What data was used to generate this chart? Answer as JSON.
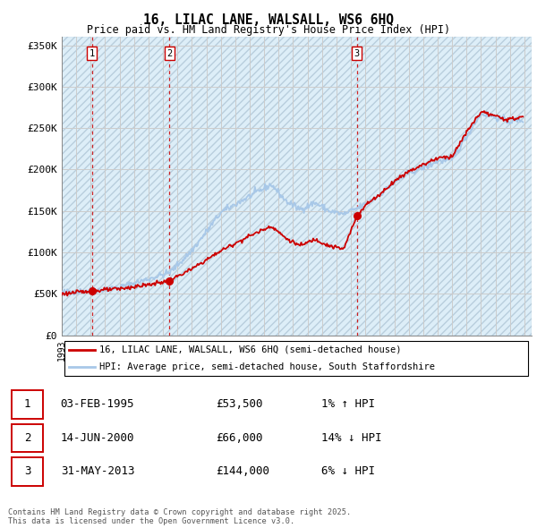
{
  "title": "16, LILAC LANE, WALSALL, WS6 6HQ",
  "subtitle": "Price paid vs. HM Land Registry's House Price Index (HPI)",
  "ylim": [
    0,
    360000
  ],
  "yticks": [
    0,
    50000,
    100000,
    150000,
    200000,
    250000,
    300000,
    350000
  ],
  "ytick_labels": [
    "£0",
    "£50K",
    "£100K",
    "£150K",
    "£200K",
    "£250K",
    "£300K",
    "£350K"
  ],
  "transaction_dates": [
    1995.09,
    2000.45,
    2013.41
  ],
  "transaction_prices": [
    53500,
    66000,
    144000
  ],
  "transaction_labels": [
    "1",
    "2",
    "3"
  ],
  "transaction_table": [
    {
      "num": "1",
      "date": "03-FEB-1995",
      "price": "£53,500",
      "hpi": "1% ↑ HPI"
    },
    {
      "num": "2",
      "date": "14-JUN-2000",
      "price": "£66,000",
      "hpi": "14% ↓ HPI"
    },
    {
      "num": "3",
      "date": "31-MAY-2013",
      "price": "£144,000",
      "hpi": "6% ↓ HPI"
    }
  ],
  "legend_entries": [
    "16, LILAC LANE, WALSALL, WS6 6HQ (semi-detached house)",
    "HPI: Average price, semi-detached house, South Staffordshire"
  ],
  "footer": "Contains HM Land Registry data © Crown copyright and database right 2025.\nThis data is licensed under the Open Government Licence v3.0.",
  "hpi_color": "#a8c8e8",
  "price_color": "#cc0000",
  "vline_color": "#cc0000",
  "bg_face_color": "#ddeef8",
  "hatch_color": "#b8cedd",
  "grid_color": "#cccccc",
  "hpi_anchors_x": [
    1993.0,
    1995.1,
    1997.0,
    1999.0,
    2000.5,
    2002.0,
    2004.0,
    2006.0,
    2007.5,
    2008.5,
    2009.5,
    2010.5,
    2011.5,
    2012.5,
    2013.4,
    2014.0,
    2015.0,
    2016.0,
    2017.0,
    2018.0,
    2019.0,
    2020.0,
    2021.0,
    2022.0,
    2023.0,
    2024.0,
    2024.9
  ],
  "hpi_anchors_y": [
    52000,
    54000,
    58000,
    68000,
    76000,
    102000,
    148000,
    168000,
    182000,
    162000,
    152000,
    160000,
    150000,
    146000,
    153000,
    158000,
    170000,
    184000,
    196000,
    202000,
    210000,
    212000,
    240000,
    268000,
    263000,
    258000,
    260000
  ],
  "price_anchors_x": [
    1993.0,
    1995.09,
    1997.0,
    1999.0,
    2000.45,
    2002.0,
    2004.0,
    2006.0,
    2007.5,
    2008.5,
    2009.5,
    2010.5,
    2011.5,
    2012.5,
    2013.41,
    2014.0,
    2015.0,
    2016.0,
    2017.0,
    2018.0,
    2019.0,
    2020.0,
    2021.0,
    2022.0,
    2023.0,
    2024.0,
    2024.9
  ],
  "price_anchors_y": [
    50000,
    53500,
    56000,
    61000,
    66000,
    80000,
    102000,
    120000,
    132000,
    117000,
    108000,
    116000,
    108000,
    104000,
    144000,
    157000,
    170000,
    186000,
    198000,
    206000,
    214000,
    216000,
    245000,
    270000,
    264000,
    260000,
    264000
  ]
}
